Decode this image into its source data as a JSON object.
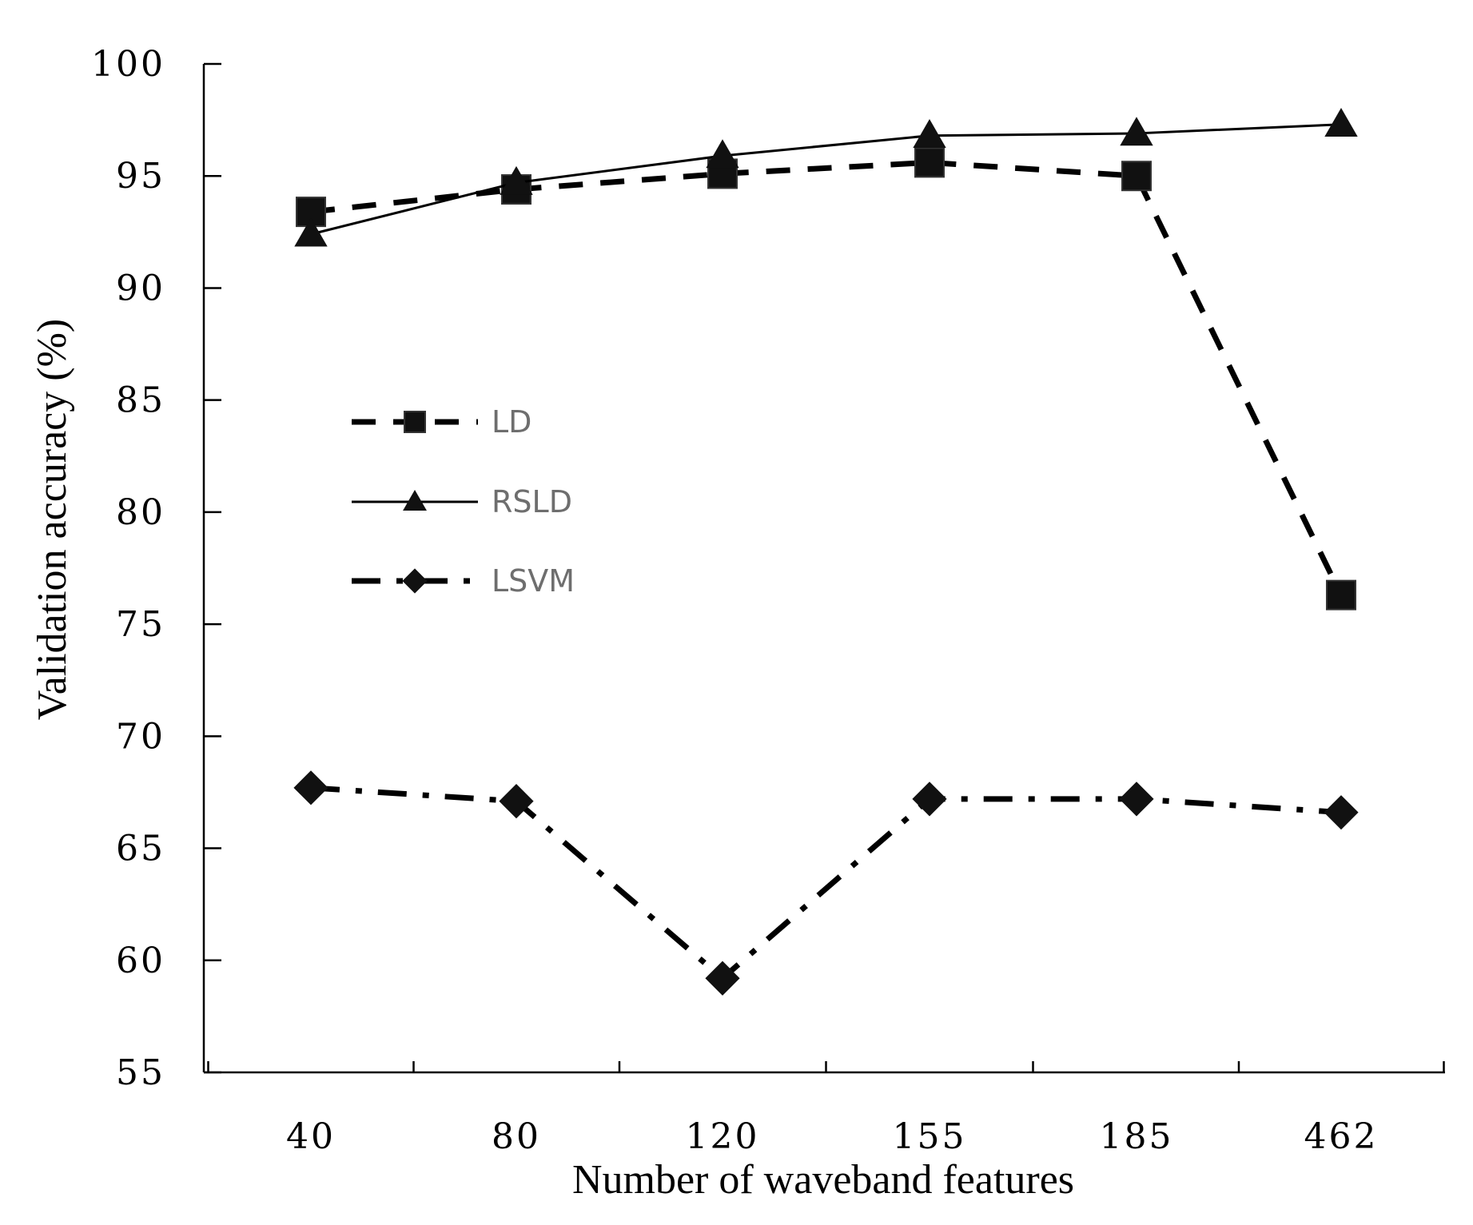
{
  "chart_data": {
    "type": "line",
    "title": "",
    "xlabel": "Number of waveband features",
    "ylabel": "Validation accuracy (%)",
    "categories": [
      "40",
      "80",
      "120",
      "155",
      "185",
      "462"
    ],
    "ylim": [
      55,
      100
    ],
    "yticks": [
      "55",
      "60",
      "65",
      "70",
      "75",
      "80",
      "85",
      "90",
      "95",
      "100"
    ],
    "grid": false,
    "legend_position": "center-left",
    "series": [
      {
        "name": "LD",
        "marker": "square",
        "line": "dashed",
        "color": "#000000",
        "values": [
          93.4,
          94.4,
          95.1,
          95.6,
          95.0,
          76.3
        ]
      },
      {
        "name": "RSLD",
        "marker": "triangle",
        "line": "solid",
        "color": "#000000",
        "values": [
          92.4,
          94.7,
          95.9,
          96.8,
          96.9,
          97.3
        ]
      },
      {
        "name": "LSVM",
        "marker": "diamond",
        "line": "dash-dot",
        "color": "#000000",
        "values": [
          67.7,
          67.1,
          59.2,
          67.2,
          67.2,
          66.6
        ]
      }
    ]
  }
}
